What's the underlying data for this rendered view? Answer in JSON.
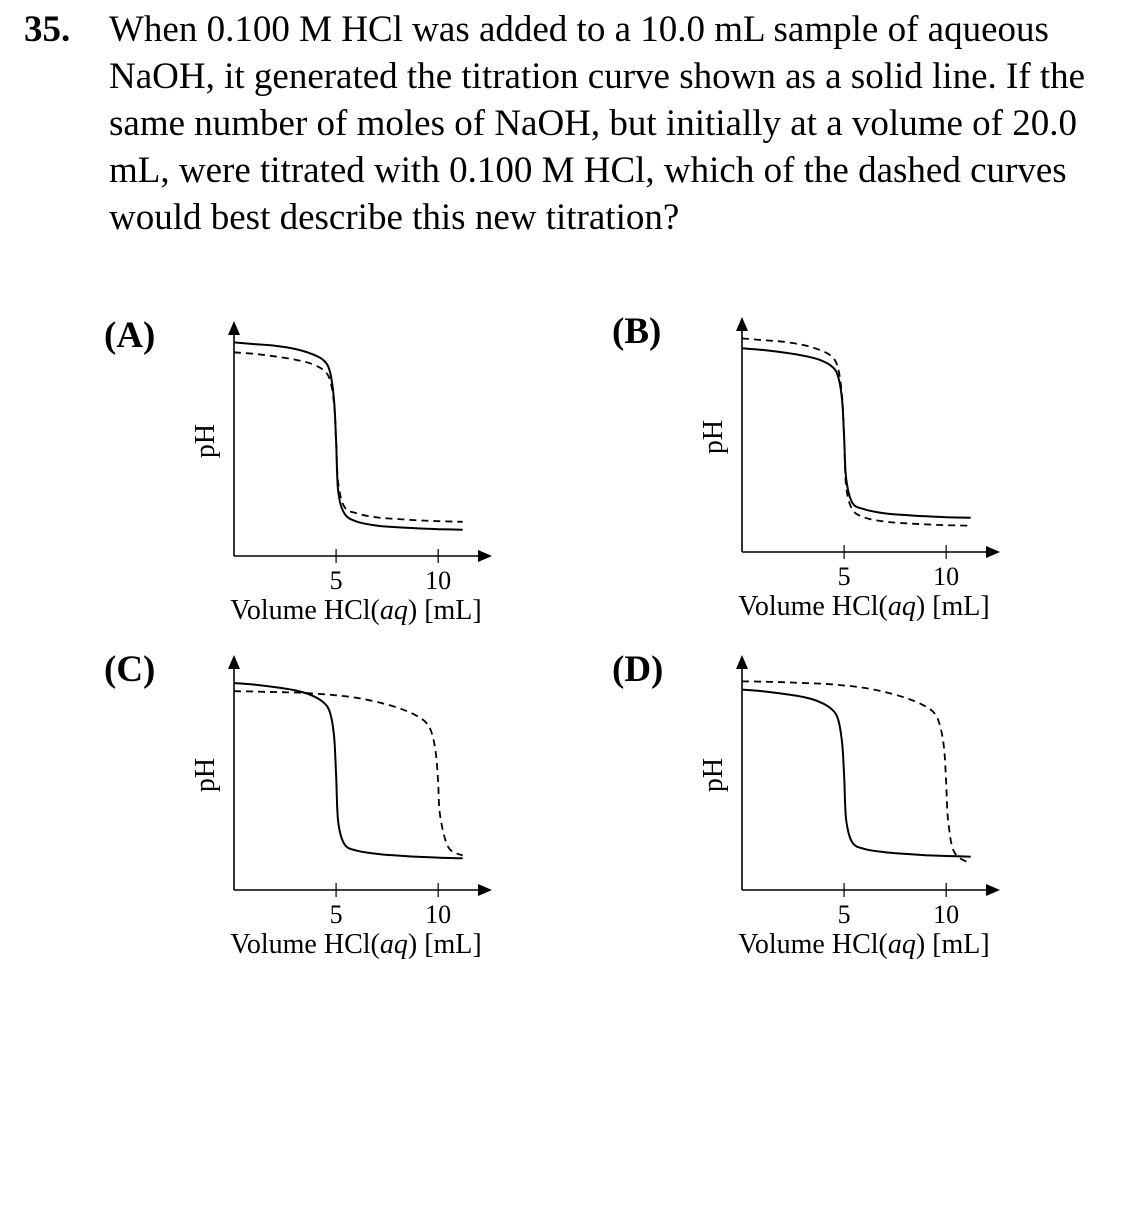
{
  "question": {
    "number": "35.",
    "text": "When 0.100 M HCl was added to a 10.0 mL sample of aqueous NaOH, it generated the titration curve shown as a solid line.  If the same number of moles of NaOH, but initially at a volume of 20.0 mL, were titrated with 0.100 M HCl, which of the dashed curves would best describe this new titration?"
  },
  "colors": {
    "ink": "#000000",
    "background": "#ffffff"
  },
  "chart_data": [
    {
      "option": "(A)",
      "type": "line",
      "ylabel": "pH",
      "xlabel": "Volume HCl(aq) [mL]",
      "xticks": [
        5,
        10
      ],
      "xlim": [
        0,
        12
      ],
      "ylim": [
        0,
        14
      ],
      "series": [
        {
          "style": "solid",
          "x": [
            0,
            1,
            2,
            3,
            3.8,
            4.4,
            4.7,
            4.9,
            5.0,
            5.1,
            5.4,
            6,
            7,
            8,
            9,
            10,
            11.2
          ],
          "y": [
            13.0,
            12.9,
            12.8,
            12.6,
            12.3,
            11.9,
            11.2,
            9.5,
            7.0,
            4.0,
            2.6,
            2.1,
            1.85,
            1.75,
            1.68,
            1.63,
            1.6
          ]
        },
        {
          "style": "dashed",
          "x": [
            0,
            1,
            2,
            3,
            3.8,
            4.4,
            4.7,
            4.9,
            5.0,
            5.1,
            5.4,
            6,
            7,
            8,
            9,
            10,
            11.2
          ],
          "y": [
            12.4,
            12.3,
            12.15,
            11.95,
            11.7,
            11.3,
            10.7,
            9.3,
            7.0,
            4.5,
            3.0,
            2.6,
            2.35,
            2.25,
            2.17,
            2.12,
            2.08
          ]
        }
      ]
    },
    {
      "option": "(B)",
      "type": "line",
      "ylabel": "pH",
      "xlabel": "Volume HCl(aq) [mL]",
      "xticks": [
        5,
        10
      ],
      "xlim": [
        0,
        12
      ],
      "ylim": [
        0,
        14
      ],
      "series": [
        {
          "style": "solid",
          "x": [
            0,
            1,
            2,
            3,
            3.8,
            4.4,
            4.7,
            4.9,
            5.0,
            5.1,
            5.4,
            6,
            7,
            8,
            9,
            10,
            11.2
          ],
          "y": [
            12.4,
            12.3,
            12.15,
            11.95,
            11.7,
            11.3,
            10.7,
            9.3,
            7.0,
            4.5,
            3.0,
            2.6,
            2.35,
            2.25,
            2.17,
            2.12,
            2.08
          ]
        },
        {
          "style": "dashed",
          "x": [
            0,
            1,
            2,
            3,
            3.8,
            4.4,
            4.7,
            4.9,
            5.0,
            5.1,
            5.4,
            6,
            7,
            8,
            9,
            10,
            11.2
          ],
          "y": [
            13.0,
            12.9,
            12.8,
            12.6,
            12.3,
            11.9,
            11.2,
            9.5,
            7.0,
            4.0,
            2.6,
            2.1,
            1.85,
            1.75,
            1.68,
            1.63,
            1.6
          ]
        }
      ]
    },
    {
      "option": "(C)",
      "type": "line",
      "ylabel": "pH",
      "xlabel": "Volume HCl(aq) [mL]",
      "xticks": [
        5,
        10
      ],
      "xlim": [
        0,
        12
      ],
      "ylim": [
        0,
        14
      ],
      "series": [
        {
          "style": "solid",
          "x": [
            0,
            1,
            2,
            3,
            3.8,
            4.4,
            4.7,
            4.9,
            5.0,
            5.1,
            5.4,
            6,
            7,
            8,
            9,
            10,
            11.2
          ],
          "y": [
            12.6,
            12.5,
            12.35,
            12.15,
            11.85,
            11.4,
            10.8,
            9.4,
            7.0,
            4.2,
            2.8,
            2.4,
            2.2,
            2.1,
            2.02,
            1.97,
            1.93
          ]
        },
        {
          "style": "dashed",
          "x": [
            0,
            1,
            2,
            3,
            4,
            5,
            6,
            7,
            8,
            8.8,
            9.4,
            9.7,
            9.9,
            10.0,
            10.1,
            10.5,
            11.2
          ],
          "y": [
            12.1,
            12.08,
            12.05,
            12.02,
            11.95,
            11.85,
            11.7,
            11.45,
            11.1,
            10.7,
            10.2,
            9.5,
            8.2,
            6.5,
            4.5,
            2.6,
            2.1
          ]
        }
      ]
    },
    {
      "option": "(D)",
      "type": "line",
      "ylabel": "pH",
      "xlabel": "Volume HCl(aq) [mL]",
      "xticks": [
        5,
        10
      ],
      "xlim": [
        0,
        12
      ],
      "ylim": [
        0,
        14
      ],
      "series": [
        {
          "style": "solid",
          "x": [
            0,
            1,
            2,
            3,
            3.8,
            4.4,
            4.7,
            4.9,
            5.0,
            5.1,
            5.4,
            6,
            7,
            8,
            9,
            10,
            11.2
          ],
          "y": [
            12.2,
            12.1,
            11.95,
            11.75,
            11.45,
            11.0,
            10.4,
            9.0,
            7.0,
            4.3,
            2.9,
            2.5,
            2.3,
            2.2,
            2.12,
            2.07,
            2.03
          ]
        },
        {
          "style": "dashed",
          "x": [
            0,
            1,
            2,
            3,
            4,
            5,
            6,
            7,
            8,
            8.8,
            9.4,
            9.7,
            9.9,
            10.0,
            10.1,
            10.4,
            11.2
          ],
          "y": [
            12.7,
            12.68,
            12.65,
            12.6,
            12.55,
            12.45,
            12.3,
            12.05,
            11.7,
            11.3,
            10.8,
            10.0,
            8.6,
            6.5,
            4.2,
            2.3,
            1.6
          ]
        }
      ]
    }
  ]
}
